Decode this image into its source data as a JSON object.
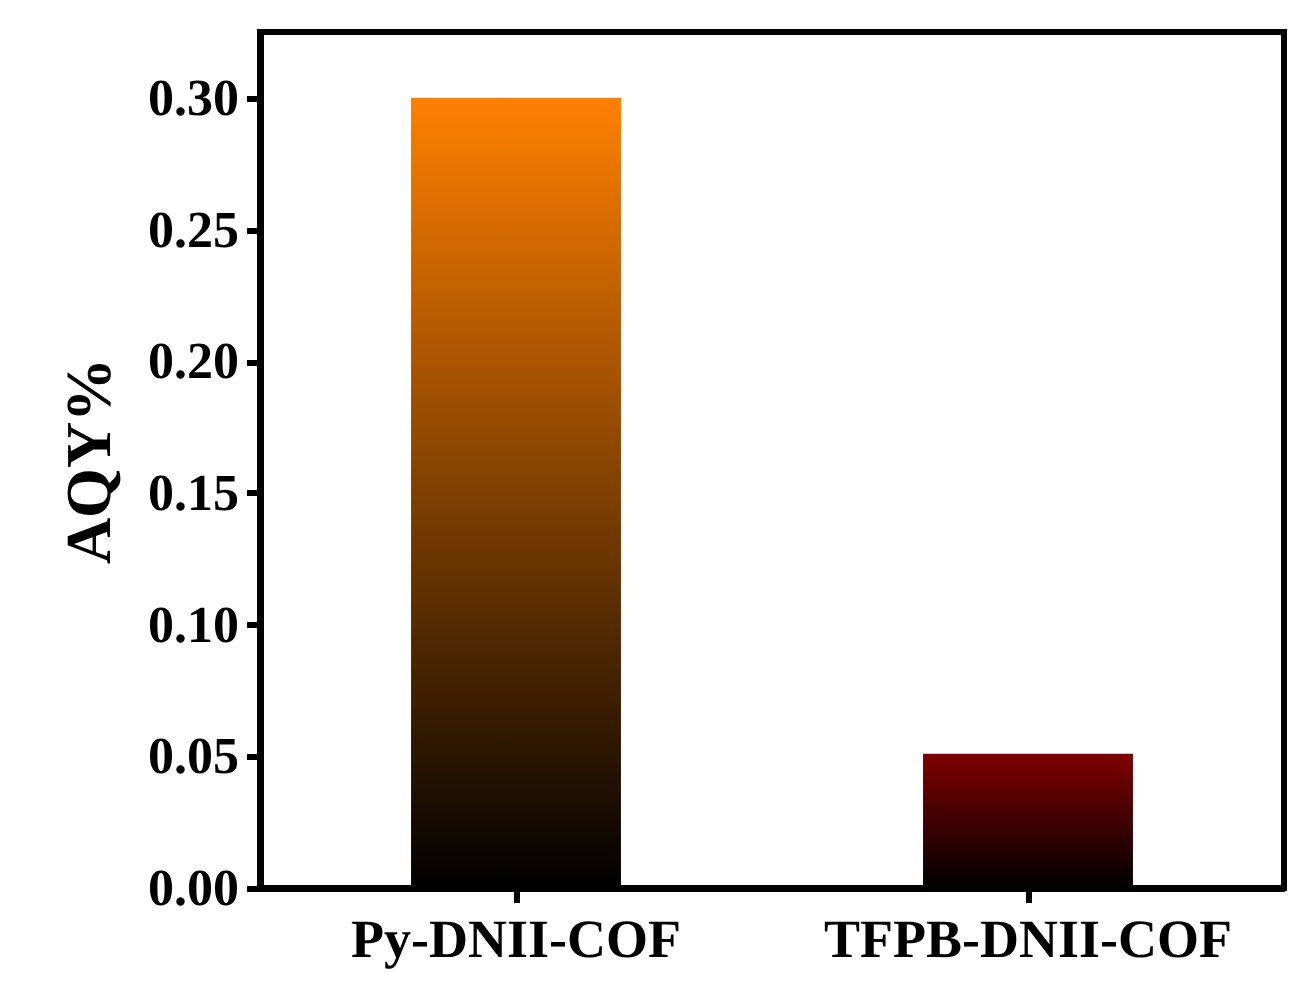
{
  "chart_data": {
    "type": "bar",
    "ylabel": "AQY%",
    "categories": [
      "Py-DNII-COF",
      "TFPB-DNII-COF"
    ],
    "values": [
      0.3,
      0.051
    ],
    "colors": [
      "#ff8000",
      "#800000"
    ],
    "ylim": [
      0,
      0.325
    ],
    "yticks": [
      {
        "value": 0,
        "label": "0.00"
      },
      {
        "value": 0.05,
        "label": "0.05"
      },
      {
        "value": 0.1,
        "label": "0.10"
      },
      {
        "value": 0.15,
        "label": "0.15"
      },
      {
        "value": 0.2,
        "label": "0.20"
      },
      {
        "value": 0.25,
        "label": "0.25"
      },
      {
        "value": 0.3,
        "label": "0.30"
      }
    ]
  }
}
